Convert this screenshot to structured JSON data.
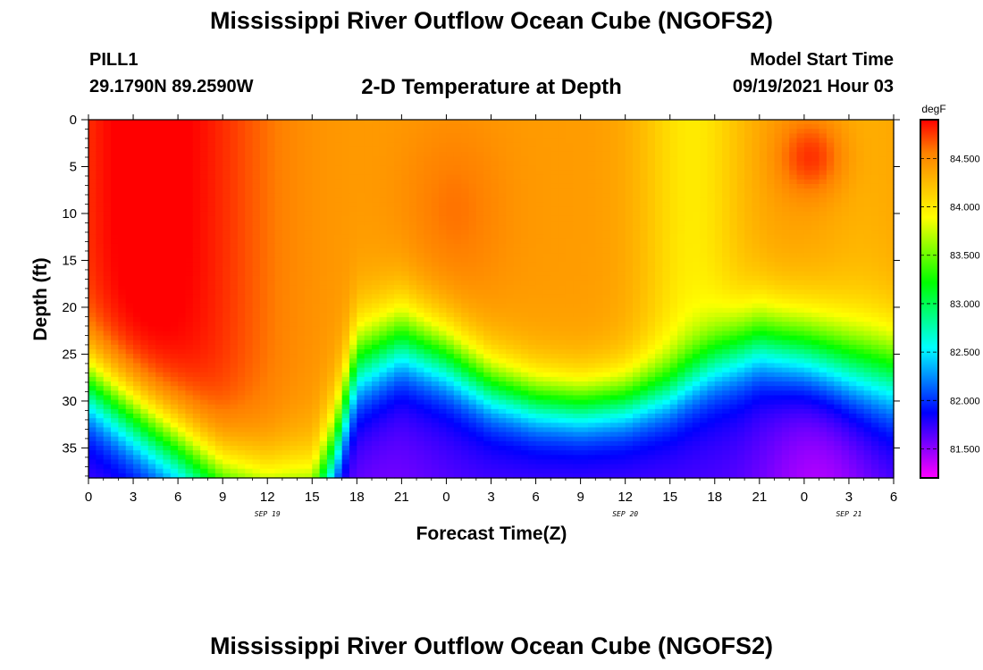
{
  "header": {
    "title": "Mississippi River Outflow Ocean Cube (NGOFS2)",
    "station": "PILL1",
    "coords": "29.1790N  89.2590W",
    "plot_title": "2-D Temperature at Depth",
    "model_start_label": "Model Start Time",
    "model_start_value": "09/19/2021 Hour 03"
  },
  "footer": {
    "title": "Mississippi River Outflow Ocean Cube (NGOFS2)"
  },
  "chart_data": {
    "type": "heatmap",
    "xlabel": "Forecast Time(Z)",
    "ylabel": "Depth (ft)",
    "x_ticks": [
      "0",
      "3",
      "6",
      "9",
      "12",
      "15",
      "18",
      "21",
      "0",
      "3",
      "6",
      "9",
      "12",
      "15",
      "18",
      "21",
      "0",
      "3",
      "6"
    ],
    "x_range_hours": [
      0,
      54
    ],
    "date_labels": [
      {
        "label": "SEP 19",
        "hour": 12
      },
      {
        "label": "SEP 20",
        "hour": 36
      },
      {
        "label": "SEP 21",
        "hour": 51
      }
    ],
    "y_ticks": [
      0,
      5,
      10,
      15,
      20,
      25,
      30,
      35
    ],
    "y_range_ft": [
      0,
      38.2
    ],
    "colorbar": {
      "unit": "degF",
      "range": [
        81.2,
        84.9
      ],
      "ticks": [
        "81.500",
        "82.000",
        "82.500",
        "83.000",
        "83.500",
        "84.000",
        "84.500"
      ],
      "tick_values": [
        81.5,
        82.0,
        82.5,
        83.0,
        83.5,
        84.0,
        84.5
      ],
      "colors": [
        "#ff00ff",
        "#8000ff",
        "#0000ff",
        "#0080ff",
        "#00ffff",
        "#00ff80",
        "#00ff00",
        "#80ff00",
        "#ffff00",
        "#ffc000",
        "#ff8000",
        "#ff0000"
      ]
    },
    "thermocline_depth_ft": {
      "hours": [
        0,
        6,
        9,
        12,
        15,
        16.5,
        18,
        21,
        24,
        27,
        30,
        33,
        36,
        39,
        42,
        45,
        48,
        51,
        54
      ],
      "values": [
        28,
        35,
        39,
        41,
        41,
        35,
        26,
        23.5,
        25.5,
        28.5,
        30,
        30.5,
        30,
        28.5,
        25.5,
        23.5,
        24.5,
        26,
        27
      ]
    }
  }
}
